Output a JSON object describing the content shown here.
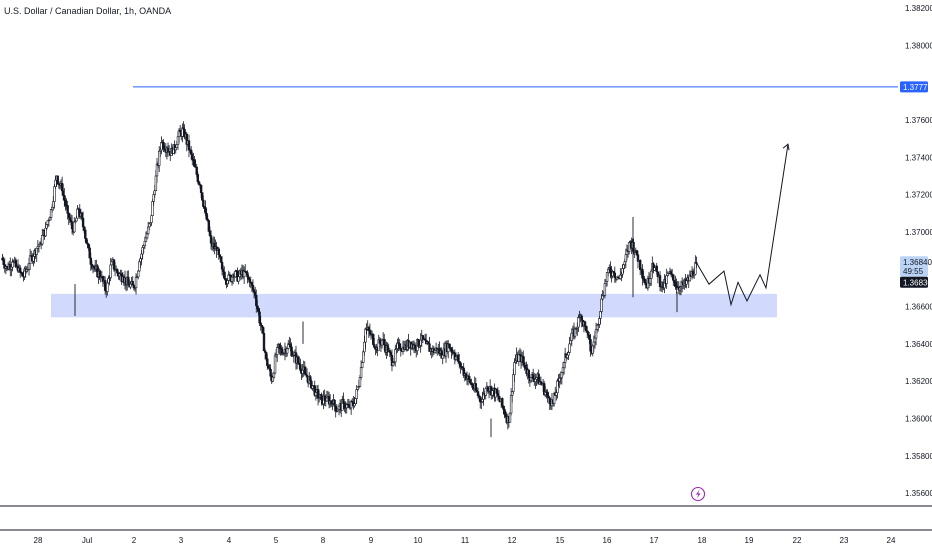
{
  "chart_data": {
    "type": "candlestick",
    "title": "U.S. Dollar / Canadian Dollar, 1h, OANDA",
    "y_ticks": [
      "1.38200",
      "1.38000",
      "1.37600",
      "1.37400",
      "1.37200",
      "1.37000",
      "1.36600",
      "1.36400",
      "1.36200",
      "1.36000",
      "1.35800",
      "1.35600"
    ],
    "x_ticks": [
      "28",
      "Jul",
      "2",
      "3",
      "4",
      "5",
      "8",
      "9",
      "10",
      "11",
      "12",
      "15",
      "16",
      "17",
      "18",
      "22",
      "23",
      "24",
      "19"
    ],
    "ylim": [
      1.3555,
      1.3825
    ],
    "resistance_level": {
      "label": "1.37777",
      "value": 1.37777,
      "color": "#2962ff"
    },
    "price_tags": [
      {
        "label": "1.36840",
        "value": 1.3684,
        "bg": "#bbd4f6",
        "fg": "#131722"
      },
      {
        "label": "49:55",
        "value": 1.3679,
        "bg": "#bbd4f6",
        "fg": "#131722"
      },
      {
        "label": "1.36830",
        "value": 1.3673,
        "bg": "#131722",
        "fg": "#ffffff"
      }
    ],
    "support_zone": {
      "from": 1.36542,
      "to": 1.36668,
      "color": "#c9d4fb"
    },
    "projection": [
      {
        "x": "2024-07-17T22:00",
        "y": 1.3683
      },
      {
        "x": "2024-07-18T03:00",
        "y": 1.3672
      },
      {
        "x": "2024-07-18T08:00",
        "y": 1.3679
      },
      {
        "x": "2024-07-18T14:00",
        "y": 1.3661
      },
      {
        "x": "2024-07-18T20:00",
        "y": 1.3673
      },
      {
        "x": "2024-07-19T01:00",
        "y": 1.3663
      },
      {
        "x": "2024-07-19T07:00",
        "y": 1.3677
      },
      {
        "x": "2024-07-19T13:00",
        "y": 1.367
      },
      {
        "x": "2024-07-19T23:00",
        "y": 1.3747
      }
    ],
    "price_path": [
      [
        1.3686,
        1.3681,
        1.3684,
        1.3679,
        1.3676,
        1.3683,
        1.369,
        1.3694,
        1.3702,
        1.3712,
        1.373,
        1.3722,
        1.371,
        1.37,
        1.3712,
        1.3701,
        1.3686,
        1.368,
        1.3676,
        1.3668,
        1.3684,
        1.3678,
        1.3676,
        1.3672,
        1.367,
        1.3684,
        1.3695,
        1.3705,
        1.373,
        1.3748,
        1.3745,
        1.3742,
        1.3751,
        1.3755,
        1.3744,
        1.3735,
        1.3725,
        1.371,
        1.3694,
        1.369,
        1.368,
        1.3674,
        1.3677,
        1.3676,
        1.3679,
        1.3673,
        1.3666,
        1.365,
        1.3632,
        1.362,
        1.3638,
        1.3635,
        1.364,
        1.3634,
        1.3629,
        1.3624,
        1.362,
        1.3614,
        1.361,
        1.3611,
        1.3608,
        1.3605,
        1.3608,
        1.3606,
        1.3608,
        1.3622,
        1.3648,
        1.3645,
        1.3638,
        1.3642,
        1.3636,
        1.363,
        1.364,
        1.3637,
        1.3641,
        1.3638,
        1.3642,
        1.364,
        1.3636,
        1.3637,
        1.3634,
        1.364,
        1.3635,
        1.363,
        1.3624,
        1.3619,
        1.3615,
        1.3609,
        1.3617,
        1.3615,
        1.3612,
        1.3605,
        1.3598,
        1.363,
        1.3634,
        1.3627,
        1.3622,
        1.3622,
        1.3618,
        1.3612,
        1.3608,
        1.362,
        1.363,
        1.364,
        1.3648,
        1.3655,
        1.3647,
        1.3635,
        1.365,
        1.3666,
        1.368,
        1.3678,
        1.3675,
        1.3684,
        1.3695,
        1.369,
        1.368,
        1.367,
        1.3683,
        1.3676,
        1.367,
        1.3678,
        1.3673,
        1.367,
        1.3672,
        1.3676,
        1.3683
      ]
    ]
  }
}
